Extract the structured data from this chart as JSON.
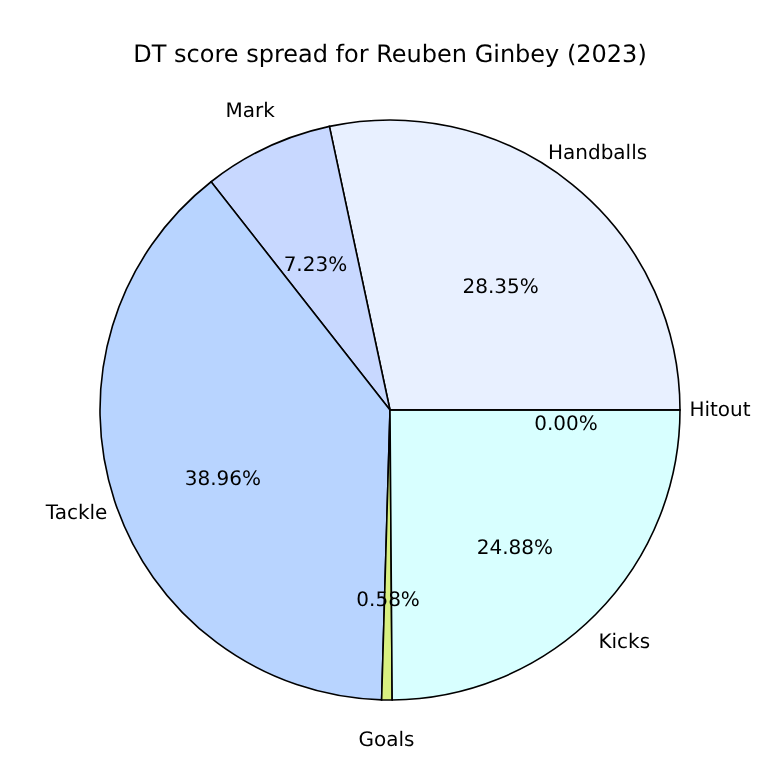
{
  "chart_data": {
    "type": "pie",
    "title": "DT score spread for Reuben Ginbey (2023)",
    "categories": [
      "Handballs",
      "Mark",
      "Tackle",
      "Goals",
      "Kicks",
      "Hitout"
    ],
    "values": [
      28.35,
      7.23,
      38.96,
      0.58,
      24.88,
      0.0
    ],
    "colors": [
      "#e8f0ff",
      "#c8d8ff",
      "#b8d4ff",
      "#d8f080",
      "#d8ffff",
      "#e0e8ff"
    ],
    "value_labels": [
      "28.35%",
      "7.23%",
      "38.96%",
      "0.58%",
      "24.88%",
      "0.00%"
    ]
  }
}
